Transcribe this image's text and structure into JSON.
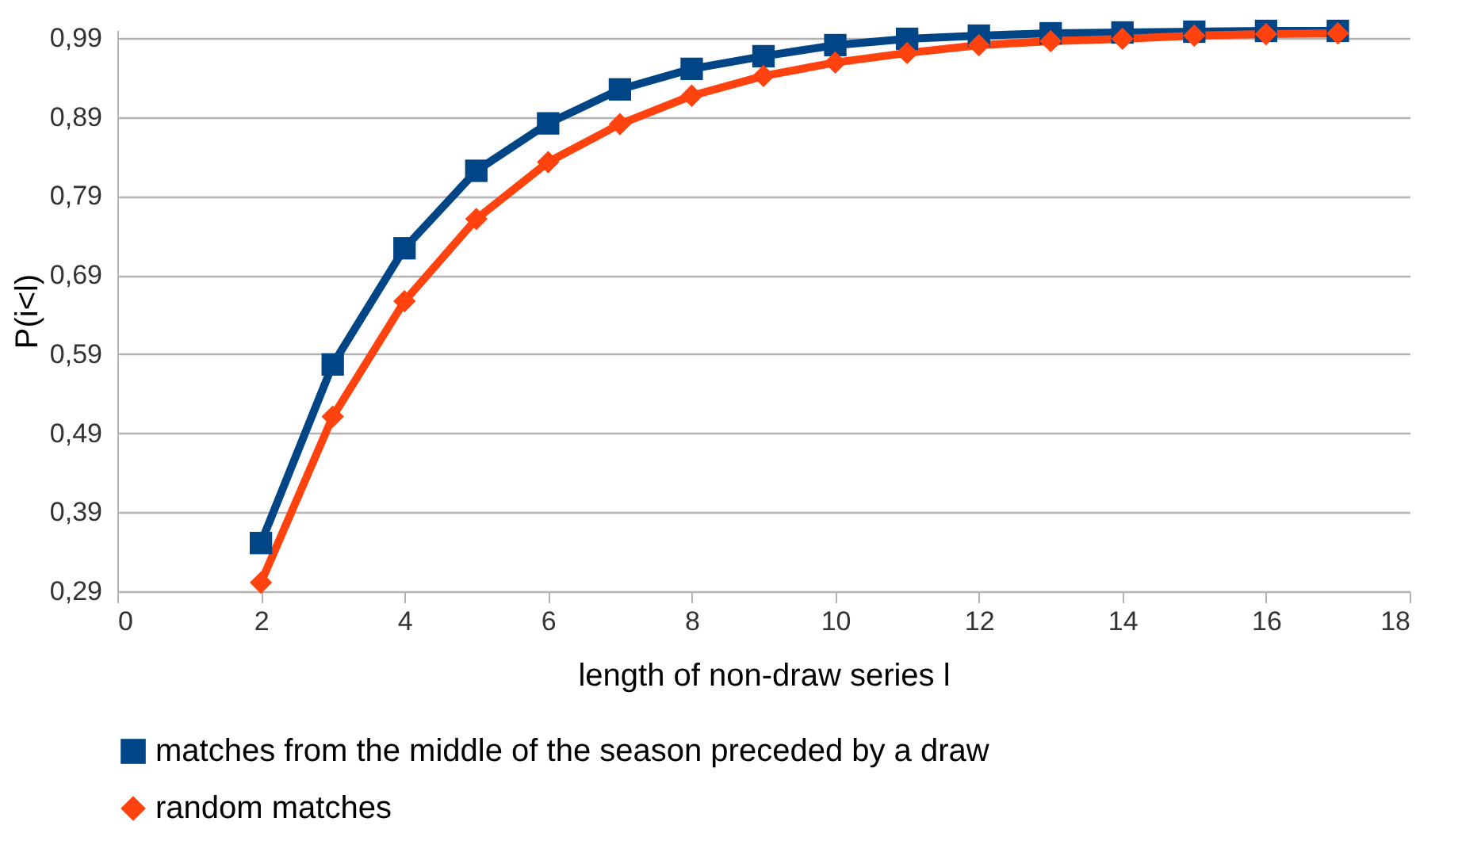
{
  "chart_data": {
    "type": "line",
    "xlabel": "length of  non-draw series l",
    "ylabel": "P(i<l)",
    "x": [
      2,
      3,
      4,
      5,
      6,
      7,
      8,
      9,
      10,
      11,
      12,
      13,
      14,
      15,
      16,
      17
    ],
    "series": [
      {
        "name": "matches from the middle of the season preceded by a draw",
        "color": "#004586",
        "marker": "square",
        "values": [
          0.351,
          0.577,
          0.724,
          0.822,
          0.882,
          0.925,
          0.951,
          0.967,
          0.981,
          0.989,
          0.993,
          0.996,
          0.997,
          0.998,
          0.999,
          0.999
        ]
      },
      {
        "name": "random matches",
        "color": "#ff420e",
        "marker": "diamond",
        "values": [
          0.301,
          0.511,
          0.657,
          0.761,
          0.833,
          0.881,
          0.917,
          0.942,
          0.959,
          0.971,
          0.981,
          0.986,
          0.989,
          0.993,
          0.995,
          0.996
        ]
      }
    ],
    "xlim": [
      0,
      18
    ],
    "xticks": [
      0,
      2,
      4,
      6,
      8,
      10,
      12,
      14,
      16,
      18
    ],
    "ylim": [
      0.29,
      1.0
    ],
    "yticks": [
      {
        "value": 0.29,
        "label": "0,29"
      },
      {
        "value": 0.39,
        "label": "0,39"
      },
      {
        "value": 0.49,
        "label": "0,49"
      },
      {
        "value": 0.59,
        "label": "0,59"
      },
      {
        "value": 0.69,
        "label": "0,69"
      },
      {
        "value": 0.79,
        "label": "0,79"
      },
      {
        "value": 0.89,
        "label": "0,89"
      },
      {
        "value": 0.99,
        "label": "0,99"
      }
    ],
    "grid": "y",
    "legend": "bottom",
    "line_style": "solid"
  }
}
